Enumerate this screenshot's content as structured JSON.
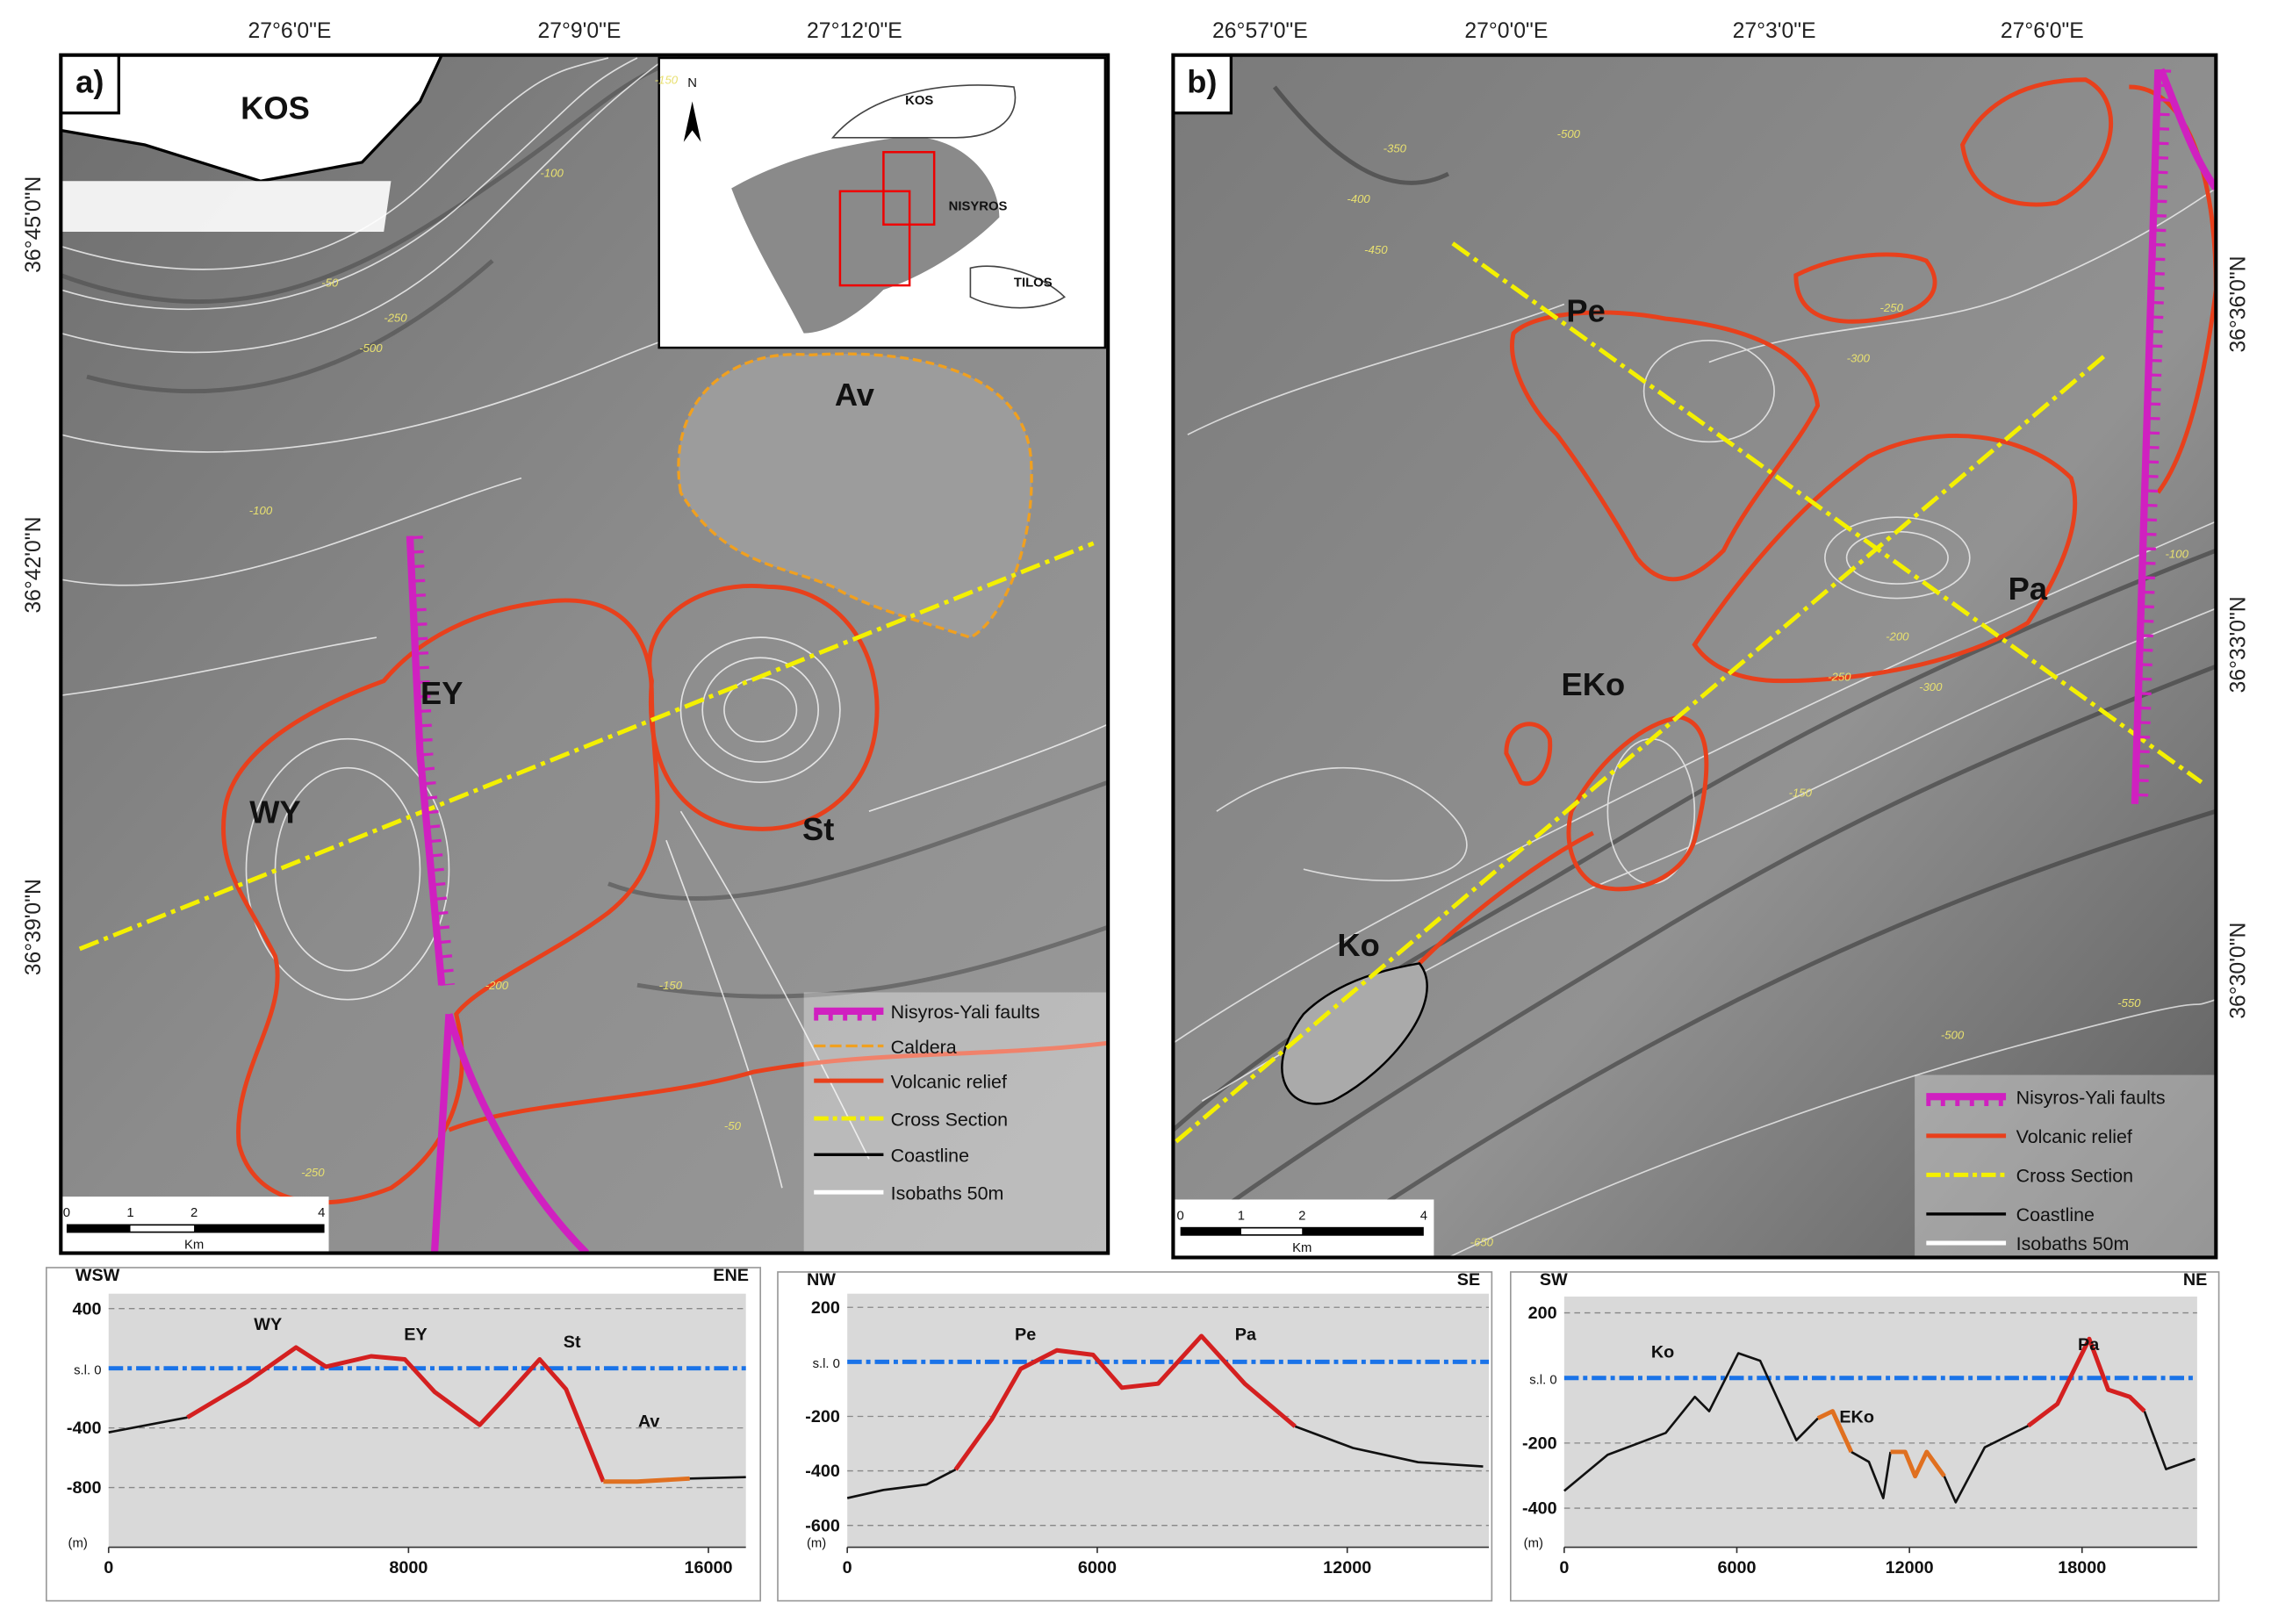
{
  "maps": [
    {
      "panel_label": "a)",
      "place_label": "KOS",
      "lon_labels": [
        "27°6'0\"E",
        "27°9'0\"E",
        "27°12'0\"E"
      ],
      "lat_labels": [
        "36°45'0\"N",
        "36°42'0\"N",
        "36°39'0\"N"
      ],
      "feature_labels": [
        "Av",
        "EY",
        "WY",
        "St"
      ],
      "isobath_labels": [
        "-150",
        "-100",
        "-50",
        "-250",
        "-500",
        "-100",
        "-200",
        "-150",
        "-50",
        "-250"
      ],
      "inset": {
        "north": "N",
        "labels": [
          "KOS",
          "NISYROS",
          "TILOS"
        ]
      },
      "legend": [
        "Nisyros-Yali faults",
        "Caldera",
        "Volcanic relief",
        "Cross Section",
        "Coastline",
        "Isobaths 50m"
      ],
      "scale": {
        "ticks": [
          0,
          1,
          2,
          4
        ],
        "unit": "Km"
      }
    },
    {
      "panel_label": "b)",
      "lon_labels": [
        "26°57'0\"E",
        "27°0'0\"E",
        "27°3'0\"E",
        "27°6'0\"E"
      ],
      "lat_labels": [
        "36°36'0\"N",
        "36°33'0\"N",
        "36°30'0\"N"
      ],
      "feature_labels": [
        "Pe",
        "Pa",
        "EKo",
        "Ko"
      ],
      "isobath_labels": [
        "-500",
        "-350",
        "-400",
        "-450",
        "-250",
        "-300",
        "-200",
        "-150",
        "-100",
        "-250",
        "-300",
        "-500",
        "-550",
        "-650"
      ],
      "legend": [
        "Nisyros-Yali faults",
        "Volcanic relief",
        "Cross Section",
        "Coastline",
        "Isobaths 50m"
      ],
      "scale": {
        "ticks": [
          0,
          1,
          2,
          4
        ],
        "unit": "Km"
      }
    }
  ],
  "chart_data": [
    {
      "type": "line",
      "x_start_label": "WSW",
      "x_end_label": "ENE",
      "ylabel": "(m)",
      "x": [
        0,
        2100,
        3700,
        5000,
        5800,
        7000,
        7900,
        8700,
        9900,
        10600,
        11500,
        12200,
        13200,
        14100,
        15500,
        17000
      ],
      "series": [
        {
          "color": "#111111",
          "values": [
            -430,
            -330,
            null,
            null,
            null,
            null,
            null,
            null,
            null,
            null,
            null,
            null,
            null,
            null,
            -740,
            -730
          ]
        },
        {
          "color": "#d42020",
          "values": [
            null,
            -330,
            -90,
            140,
            10,
            80,
            60,
            -160,
            -380,
            -190,
            60,
            -140,
            -760,
            null,
            null,
            null
          ]
        },
        {
          "color": "#e07020",
          "values": [
            null,
            null,
            null,
            null,
            null,
            null,
            null,
            null,
            null,
            null,
            null,
            null,
            -760,
            -760,
            -740,
            null
          ]
        }
      ],
      "annotations": [
        "WY",
        "EY",
        "St",
        "Av"
      ],
      "xlim": [
        0,
        17000
      ],
      "xticks": [
        0,
        8000,
        16000
      ],
      "ylim": [
        -1200,
        500
      ],
      "yticks": [
        400,
        {
          "value": 0,
          "label": "s.l. 0"
        },
        -400,
        -800
      ],
      "grid": true
    },
    {
      "type": "line",
      "x_start_label": "NW",
      "x_end_label": "SE",
      "ylabel": "(m)",
      "x": [
        0,
        870,
        1900,
        2600,
        3470,
        4160,
        5030,
        5900,
        6590,
        7460,
        8500,
        9540,
        10750,
        12140,
        13700,
        15260
      ],
      "series": [
        {
          "color": "#111111",
          "values": [
            -500,
            -470,
            -450,
            -395,
            null,
            null,
            null,
            null,
            null,
            null,
            null,
            null,
            -237,
            -316,
            -368,
            -384
          ]
        },
        {
          "color": "#d42020",
          "values": [
            null,
            null,
            null,
            -395,
            -210,
            -26,
            42,
            26,
            -95,
            -80,
            95,
            -80,
            -237,
            null,
            null,
            null
          ]
        }
      ],
      "annotations": [
        "Pe",
        "Pa"
      ],
      "xlim": [
        0,
        15400
      ],
      "xticks": [
        0,
        6000,
        12000
      ],
      "ylim": [
        -680,
        250
      ],
      "yticks": [
        200,
        {
          "value": 0,
          "label": "s.l. 0"
        },
        -200,
        -400,
        -600
      ],
      "grid": true
    },
    {
      "type": "line",
      "x_start_label": "SW",
      "x_end_label": "NE",
      "ylabel": "(m)",
      "x": [
        0,
        1510,
        3530,
        4540,
        5040,
        6050,
        6810,
        8070,
        8820,
        9330,
        9980,
        10590,
        11090,
        11340,
        11850,
        12200,
        12600,
        13210,
        13610,
        14620,
        16130,
        17140,
        18250,
        18910,
        19660,
        20170,
        20920,
        21930
      ],
      "series": [
        {
          "color": "#111111",
          "values": [
            -347,
            -236,
            -169,
            -58,
            -102,
            76,
            53,
            -191,
            -124,
            null,
            -227,
            -258,
            -369,
            -227,
            null,
            null,
            null,
            -302,
            -382,
            -213,
            -147,
            null,
            null,
            null,
            null,
            -102,
            -280,
            -249
          ]
        },
        {
          "color": "#e07020",
          "values": [
            null,
            null,
            null,
            null,
            null,
            null,
            null,
            null,
            -124,
            -102,
            -227,
            null,
            null,
            -227,
            -227,
            -302,
            -227,
            -302,
            null,
            null,
            null,
            null,
            null,
            null,
            null,
            null,
            null,
            null
          ]
        },
        {
          "color": "#d42020",
          "values": [
            null,
            null,
            null,
            null,
            null,
            null,
            null,
            null,
            null,
            null,
            null,
            null,
            null,
            null,
            null,
            null,
            null,
            null,
            null,
            null,
            -147,
            -80,
            120,
            -36,
            -58,
            -102,
            null,
            null
          ]
        }
      ],
      "annotations": [
        "Ko",
        "EKo",
        "Pa"
      ],
      "xlim": [
        0,
        22000
      ],
      "xticks": [
        0,
        6000,
        12000,
        18000
      ],
      "ylim": [
        -520,
        250
      ],
      "yticks": [
        200,
        {
          "value": 0,
          "label": "s.l. 0"
        },
        -200,
        -400
      ],
      "grid": true
    }
  ]
}
